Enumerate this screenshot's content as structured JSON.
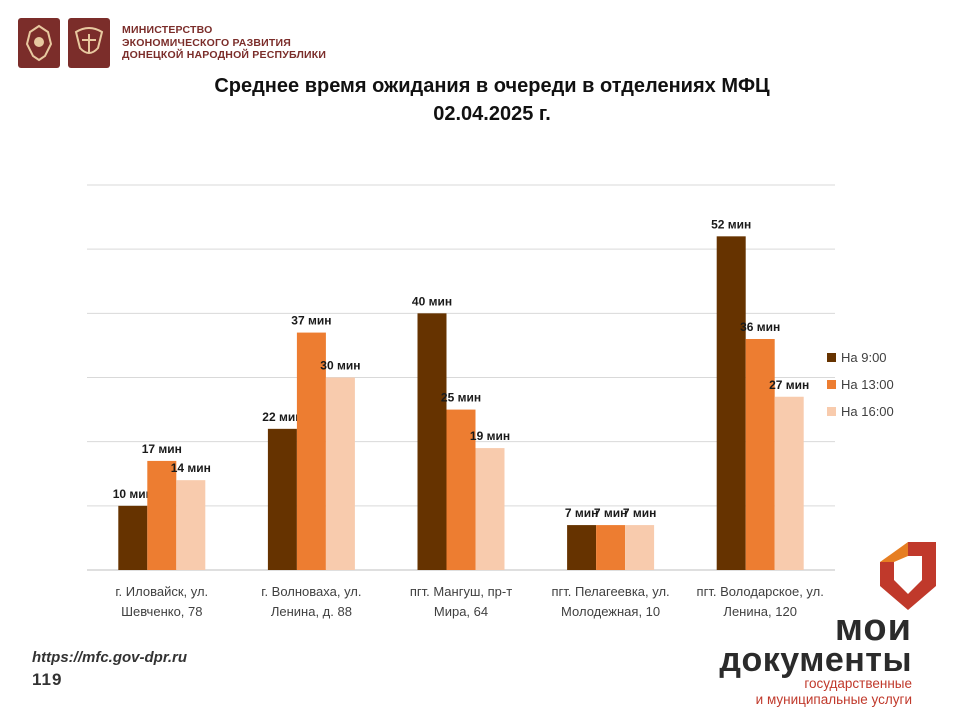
{
  "header": {
    "ministry_lines": [
      "МИНИСТЕРСТВО",
      "ЭКОНОМИЧЕСКОГО РАЗВИТИЯ",
      "ДОНЕЦКОЙ НАРОДНОЙ РЕСПУБЛИКИ"
    ],
    "emblem_color": "#7b2d2a"
  },
  "title_lines": [
    "Среднее время ожидания в очереди в отделениях МФЦ",
    "02.04.2025 г."
  ],
  "chart_data": {
    "type": "bar",
    "title": "Среднее время ожидания в очереди в отделениях МФЦ 02.04.2025 г.",
    "categories": [
      [
        "г. Иловайск, ул.",
        "Шевченко, 78"
      ],
      [
        "г. Волноваха, ул.",
        "Ленина, д. 88"
      ],
      [
        "пгт. Мангуш, пр-т",
        "Мира, 64"
      ],
      [
        "пгт. Пелагеевка, ул.",
        "Молодежная, 10"
      ],
      [
        "пгт. Володарское, ул.",
        "Ленина, 120"
      ]
    ],
    "series": [
      {
        "name": "На 9:00",
        "color": "#663300",
        "values": [
          10,
          22,
          40,
          7,
          52
        ],
        "labels": [
          "10 мин",
          "22 мин",
          "40 мин",
          "7 мин",
          "52 мин"
        ]
      },
      {
        "name": "На 13:00",
        "color": "#ed7d31",
        "values": [
          17,
          37,
          25,
          7,
          36
        ],
        "labels": [
          "17 мин",
          "37 мин",
          "25 мин",
          "7 мин",
          "36 мин"
        ]
      },
      {
        "name": "На 16:00",
        "color": "#f8cbad",
        "values": [
          14,
          30,
          19,
          7,
          27
        ],
        "labels": [
          "14 мин",
          "30 мин",
          "19 мин",
          "7 мин",
          "27 мин"
        ]
      }
    ],
    "ylim": [
      0,
      60
    ],
    "grid": true,
    "legend": "right"
  },
  "footer": {
    "url": "https://mfc.gov-dpr.ru",
    "page_number": "119",
    "brand_line1": "мои",
    "brand_line2": "документы",
    "brand_line3": "государственные",
    "brand_line4": "и муниципальные услуги",
    "brand_colors": {
      "red": "#c0392b",
      "orange": "#e67e22",
      "dark": "#2b2b2b"
    }
  }
}
